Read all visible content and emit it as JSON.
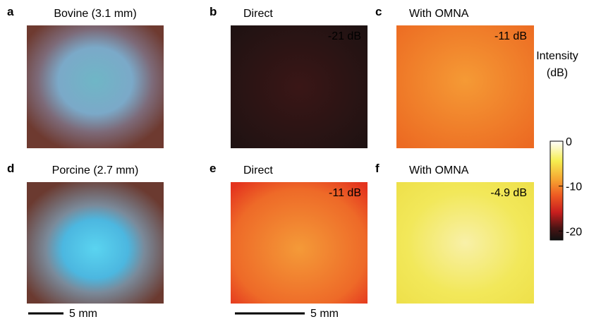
{
  "panels": [
    {
      "letter": "a",
      "title": "Bovine (3.1 mm)"
    },
    {
      "letter": "b",
      "title": "Direct",
      "annotation": "-21 dB"
    },
    {
      "letter": "c",
      "title": "With OMNA",
      "annotation": "-11 dB"
    },
    {
      "letter": "d",
      "title": "Porcine (2.7 mm)"
    },
    {
      "letter": "e",
      "title": "Direct",
      "annotation": "-11 dB"
    },
    {
      "letter": "f",
      "title": "With OMNA",
      "annotation": "-4.9 dB"
    }
  ],
  "scale_bars": [
    "5 mm",
    "5 mm"
  ],
  "colorbar": {
    "title": [
      "Intensity",
      "(dB)"
    ],
    "clim": [
      -22,
      0
    ],
    "ticks": [
      0,
      -10,
      -20
    ]
  }
}
